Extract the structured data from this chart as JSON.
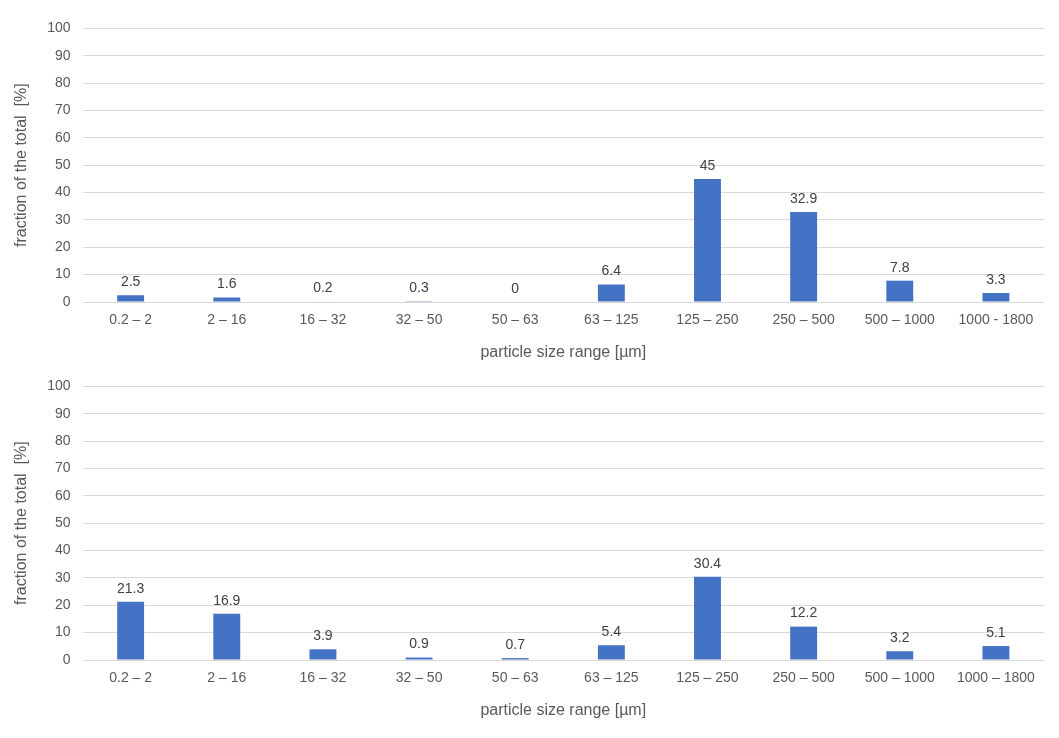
{
  "chart_data": [
    {
      "type": "bar",
      "xlabel": "particle size range [µm]",
      "ylabel": "fraction of the total  [%]",
      "categories": [
        "0.2 – 2",
        "2 – 16",
        "16 – 32",
        "32 – 50",
        "50 – 63",
        "63 – 125",
        "125 – 250",
        "250 – 500",
        "500 – 1000",
        "1000 - 1800"
      ],
      "values": [
        2.5,
        1.6,
        0.2,
        0.3,
        0,
        6.4,
        45,
        32.9,
        7.8,
        3.3
      ],
      "color": "#4472c4",
      "ylim": [
        0,
        100
      ],
      "yticks": [
        0,
        10,
        20,
        30,
        40,
        50,
        60,
        70,
        80,
        90,
        100
      ],
      "grid": "y",
      "data_labels": true,
      "legend": false
    },
    {
      "type": "bar",
      "xlabel": "particle size range [µm]",
      "ylabel": "fraction of the total  [%]",
      "categories": [
        "0.2 – 2",
        "2 – 16",
        "16 – 32",
        "32 – 50",
        "50 – 63",
        "63 – 125",
        "125 – 250",
        "250 – 500",
        "500 – 1000",
        "1000 – 1800"
      ],
      "values": [
        21.3,
        16.9,
        3.9,
        0.9,
        0.7,
        5.4,
        30.4,
        12.2,
        3.2,
        5.1
      ],
      "color": "#4472c4",
      "ylim": [
        0,
        100
      ],
      "yticks": [
        0,
        10,
        20,
        30,
        40,
        50,
        60,
        70,
        80,
        90,
        100
      ],
      "grid": "y",
      "data_labels": true,
      "legend": false
    }
  ]
}
